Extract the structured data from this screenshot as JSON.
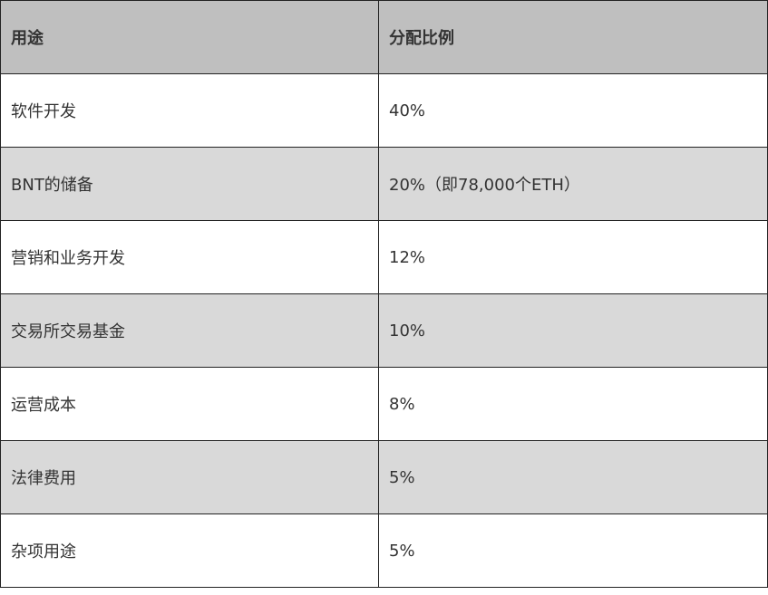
{
  "table": {
    "headers": [
      "用途",
      "分配比例"
    ],
    "rows": [
      [
        "软件开发",
        "40%"
      ],
      [
        "BNT的储备",
        "20%（即78,000个ETH）"
      ],
      [
        "营销和业务开发",
        "12%"
      ],
      [
        "交易所交易基金",
        "10%"
      ],
      [
        "运营成本",
        "8%"
      ],
      [
        "法律费用",
        "5%"
      ],
      [
        "杂项用途",
        "5%"
      ]
    ]
  },
  "colors": {
    "header_bg": "#bfbfbf",
    "alt_row_bg": "#d9d9d9",
    "border": "#222222"
  }
}
